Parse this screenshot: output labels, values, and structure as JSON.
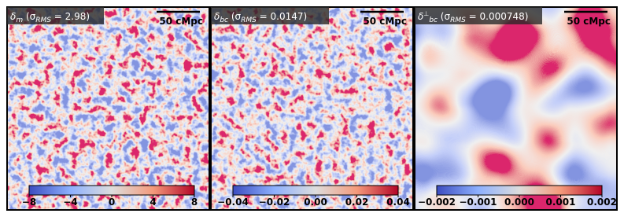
{
  "panels": [
    {
      "title": [
        {
          "text": "δ"
        },
        {
          "text": "m",
          "sub": true
        },
        {
          "text": " ("
        },
        {
          "text": "σ"
        },
        {
          "text": "RMS",
          "sub": true
        },
        {
          "text": " = 2.98)"
        }
      ],
      "scale_label": "50 cMpc",
      "colorbar": {
        "lim": [
          -8,
          8
        ],
        "ticks": [
          {
            "value": -8,
            "label": "−8"
          },
          {
            "value": -4,
            "label": "−4"
          },
          0,
          4,
          8
        ]
      }
    },
    {
      "title": [
        {
          "text": "δ"
        },
        {
          "text": "bc",
          "sub": true
        },
        {
          "text": " ("
        },
        {
          "text": "σ"
        },
        {
          "text": "RMS",
          "sub": true
        },
        {
          "text": " = 0.0147)"
        }
      ],
      "scale_label": "50 cMpc",
      "colorbar": {
        "lim": [
          -0.04,
          0.04
        ],
        "ticks": [
          {
            "value": -0.04,
            "label": "−0.04"
          },
          {
            "value": -0.02,
            "label": "−0.02"
          },
          {
            "value": 0,
            "label": "0.00"
          },
          0.02,
          0.04
        ]
      }
    },
    {
      "title": [
        {
          "text": "δ"
        },
        {
          "text": "⊥",
          "sup": true
        },
        {
          "text": "bc",
          "sub": true
        },
        {
          "text": " ("
        },
        {
          "text": "σ"
        },
        {
          "text": "RMS",
          "sub": true
        },
        {
          "text": " = 0.000748)"
        }
      ],
      "scale_label": "50 cMpc",
      "colorbar": {
        "lim": [
          -0.002,
          0.002
        ],
        "ticks": [
          {
            "value": -0.002,
            "label": "−0.002"
          },
          {
            "value": -0.001,
            "label": "−0.001"
          },
          {
            "value": 0,
            "label": "0.000"
          },
          0.001,
          0.002
        ]
      }
    }
  ]
}
